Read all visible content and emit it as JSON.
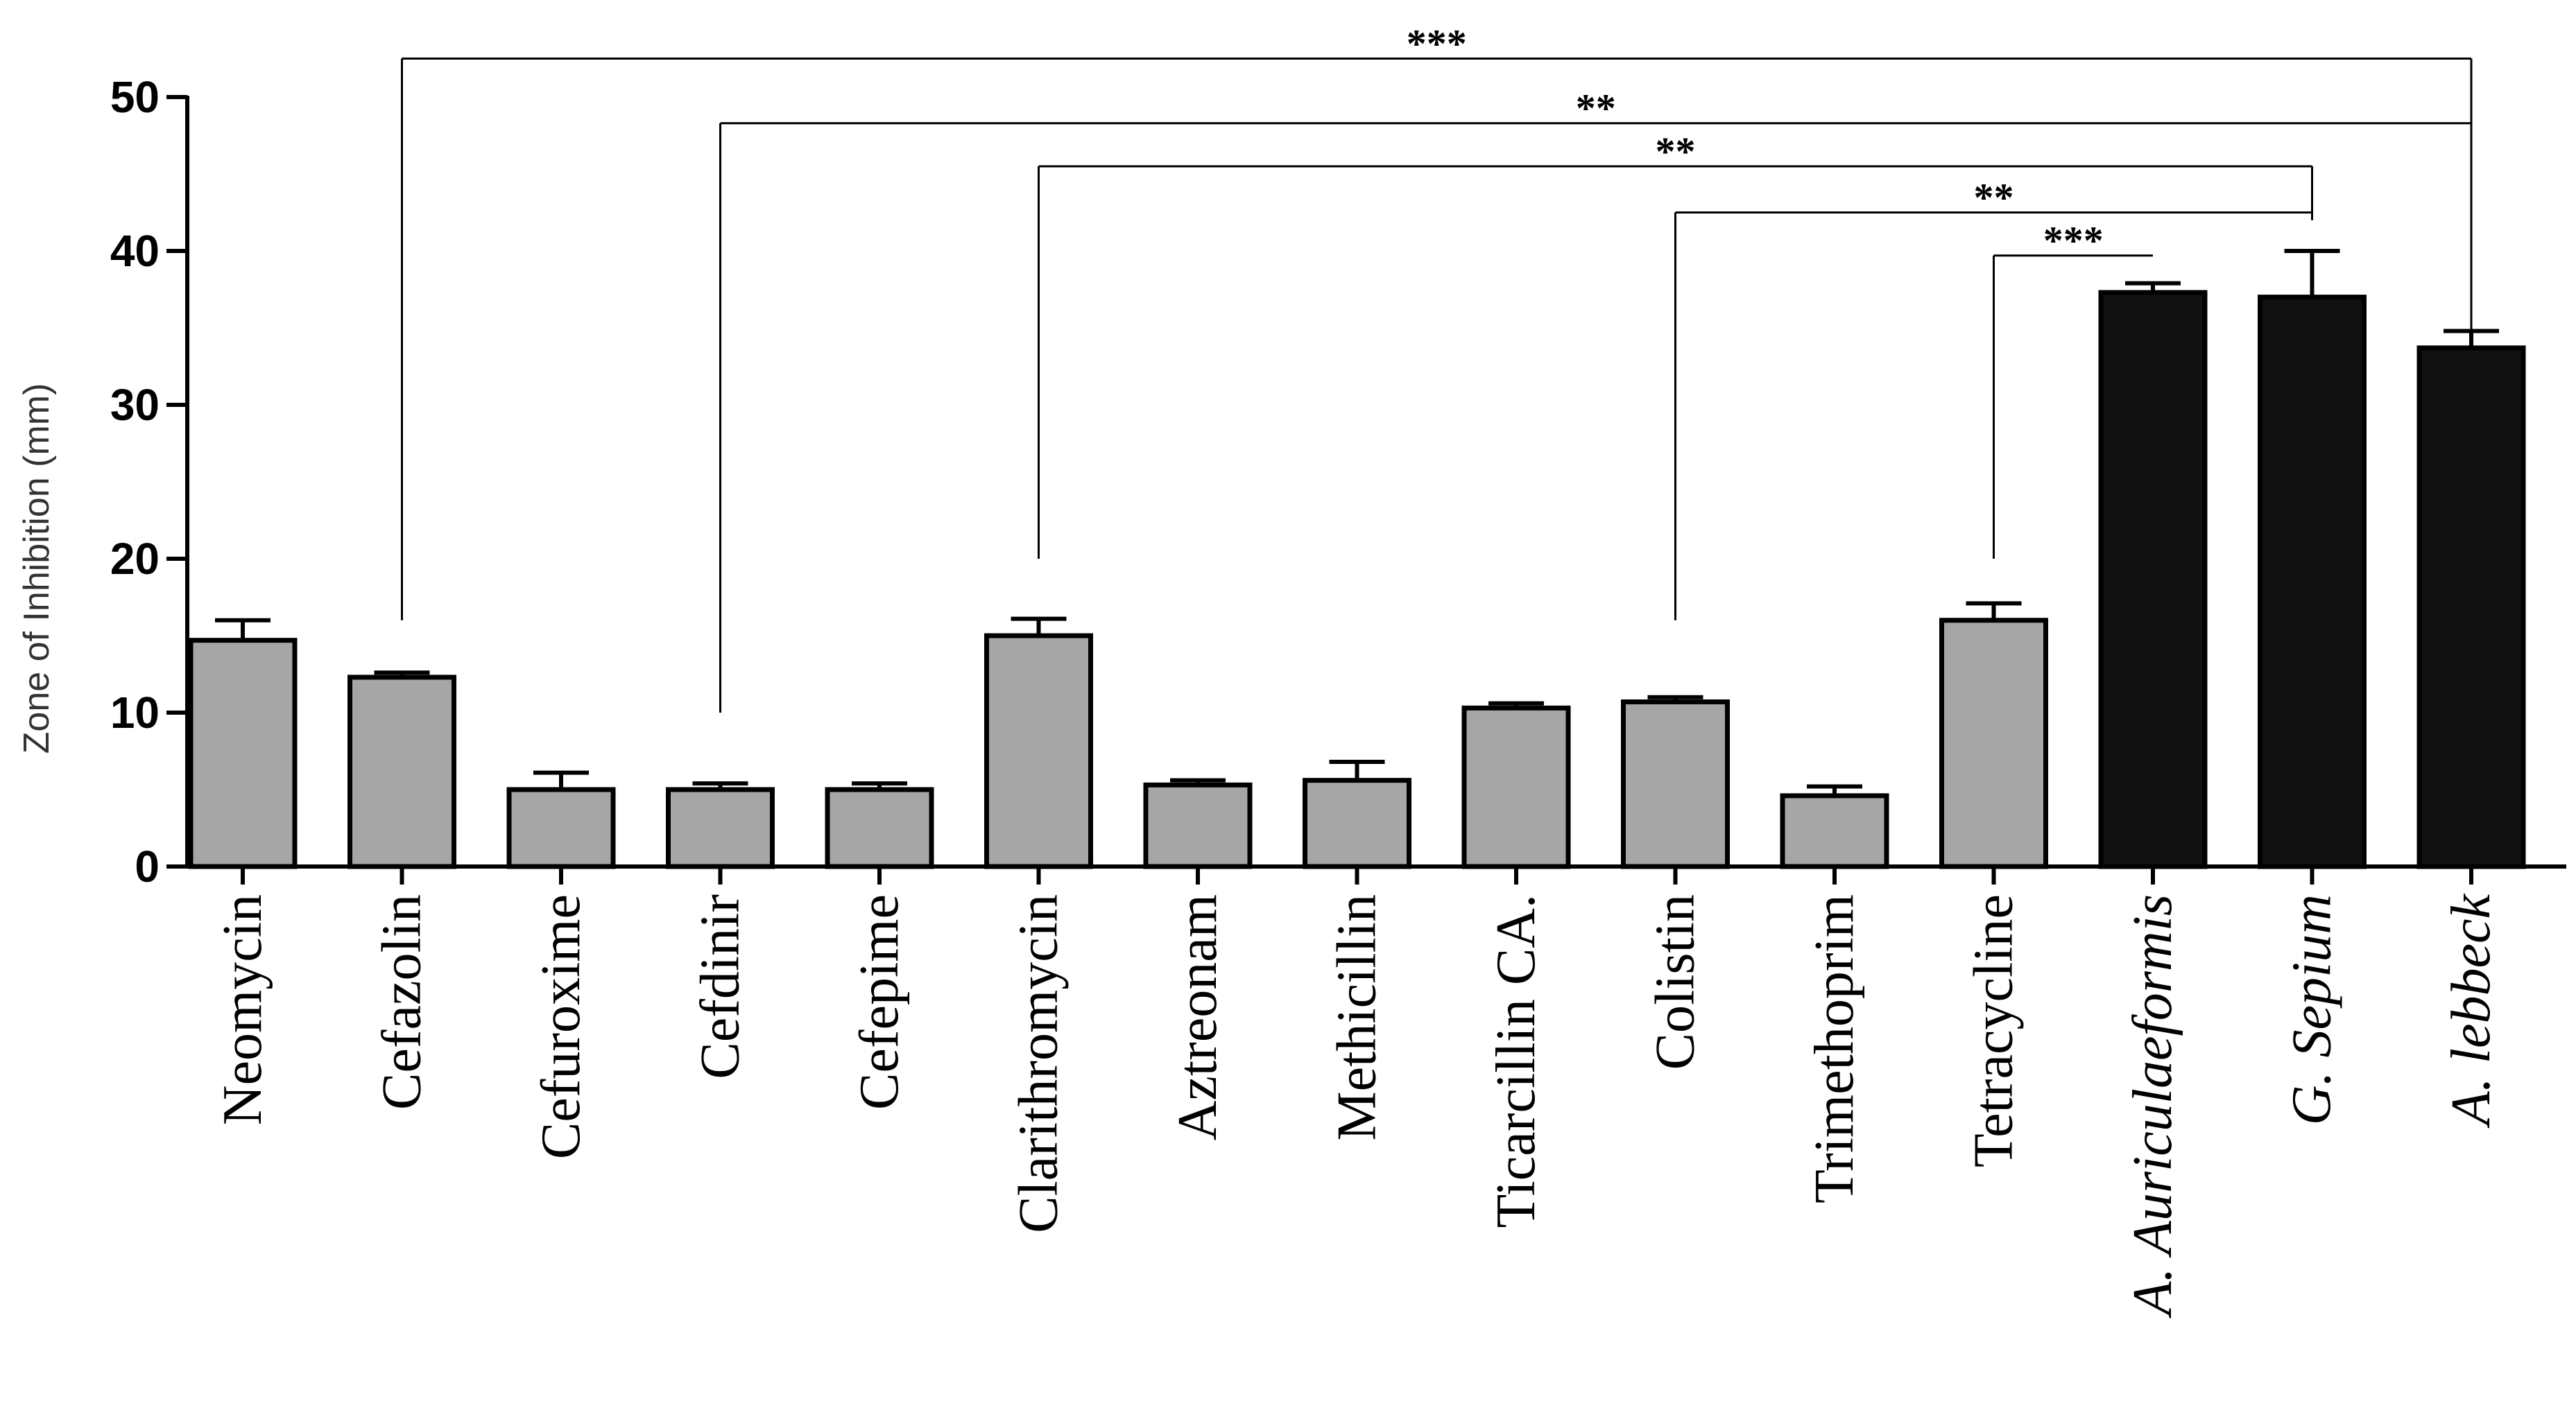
{
  "chart_data": {
    "type": "bar",
    "ylabel": "Zone of Inhibition (mm)",
    "xlabel": "",
    "title": "",
    "ylim": [
      0,
      50
    ],
    "yticks": [
      0,
      10,
      20,
      30,
      40,
      50
    ],
    "grid": false,
    "categories": [
      {
        "label": "Neomycin",
        "italic": false,
        "color": "#a6a6a6"
      },
      {
        "label": "Cefazolin",
        "italic": false,
        "color": "#a6a6a6"
      },
      {
        "label": "Cefuroxime",
        "italic": false,
        "color": "#a6a6a6"
      },
      {
        "label": "Cefdinir",
        "italic": false,
        "color": "#a6a6a6"
      },
      {
        "label": "Cefepime",
        "italic": false,
        "color": "#a6a6a6"
      },
      {
        "label": "Clarithromycin",
        "italic": false,
        "color": "#a6a6a6"
      },
      {
        "label": "Aztreonam",
        "italic": false,
        "color": "#a6a6a6"
      },
      {
        "label": "Methicillin",
        "italic": false,
        "color": "#a6a6a6"
      },
      {
        "label": "Ticarcillin  CA.",
        "italic": false,
        "color": "#a6a6a6"
      },
      {
        "label": "Colistin",
        "italic": false,
        "color": "#a6a6a6"
      },
      {
        "label": "Trimethoprim",
        "italic": false,
        "color": "#a6a6a6"
      },
      {
        "label": "Tetracycline",
        "italic": false,
        "color": "#a6a6a6"
      },
      {
        "label": "A. Auriculaeformis",
        "italic": true,
        "color": "#111111"
      },
      {
        "label": "G. Sepium",
        "italic": true,
        "color": "#111111"
      },
      {
        "label": "A. lebbeck",
        "italic": true,
        "color": "#111111"
      }
    ],
    "values": [
      14.7,
      12.3,
      5.0,
      5.0,
      5.0,
      15.0,
      5.3,
      5.6,
      10.3,
      10.7,
      4.6,
      16.0,
      37.3,
      37.0,
      33.7
    ],
    "errors": [
      1.3,
      0.3,
      1.1,
      0.4,
      0.4,
      1.1,
      0.3,
      1.2,
      0.3,
      0.3,
      0.6,
      1.1,
      0.6,
      3.0,
      1.1
    ],
    "significance": [
      {
        "from": 1,
        "to": 14,
        "level_value": 52.5,
        "label": "***",
        "from_end": 16,
        "to_end": 16
      },
      {
        "from": 3,
        "to": 14,
        "level_value": 48.3,
        "label": "**",
        "from_end": 10,
        "to_end": 16
      },
      {
        "from": 5,
        "to": 13,
        "level_value": 45.5,
        "label": "**",
        "from_end": 20,
        "to_end": 42
      },
      {
        "from": 9,
        "to": 13,
        "level_value": 42.5,
        "label": "**",
        "from_end": 16,
        "to_end": 42
      },
      {
        "from": 11,
        "to": 12,
        "level_value": 39.7,
        "label": "***",
        "from_end": 20,
        "to_end": 39.7
      }
    ]
  }
}
